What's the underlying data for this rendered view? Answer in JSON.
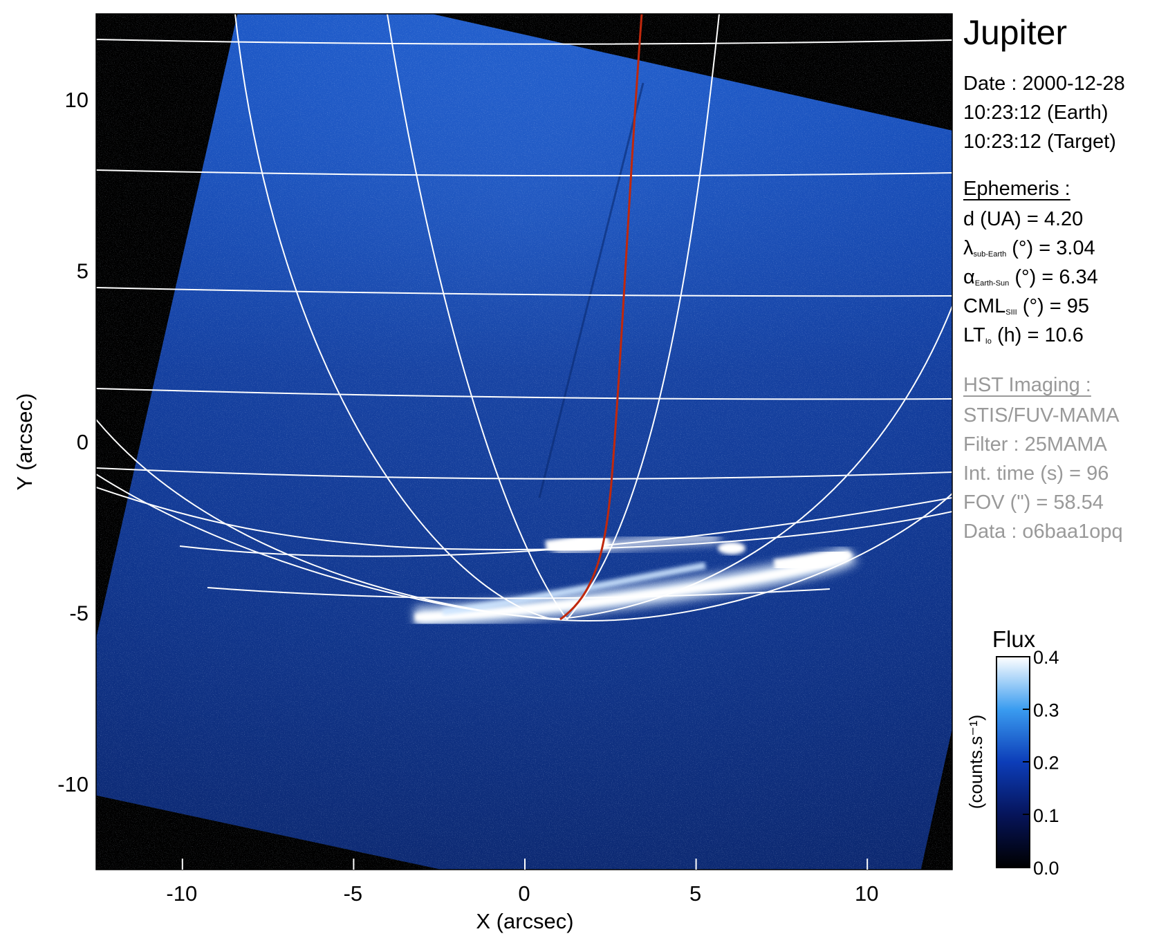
{
  "chart_data": {
    "type": "heatmap",
    "image_description_free": true,
    "xlabel": "X (arcsec)",
    "ylabel": "Y (arcsec)",
    "xlim": [
      -12.5,
      12.5
    ],
    "ylim": [
      -12.5,
      12.5
    ],
    "x_ticks": [
      -10,
      -5,
      0,
      5,
      10
    ],
    "y_ticks": [
      -10,
      -5,
      0,
      5,
      10
    ],
    "x_tick_labels": [
      "-10",
      "-5",
      "0",
      "5",
      "10"
    ],
    "y_tick_labels": [
      "-10",
      "-5",
      "0",
      "5",
      "10"
    ],
    "colorbar": {
      "title": "Flux",
      "label": "(counts.s⁻¹)",
      "range": [
        0.0,
        0.4
      ],
      "ticks": [
        0.0,
        0.1,
        0.2,
        0.3,
        0.4
      ],
      "tick_labels": [
        "0.0",
        "0.1",
        "0.2",
        "0.3",
        "0.4"
      ]
    },
    "colors": {
      "disk": "#1a55c8",
      "background": "#000000",
      "grid": "#ffffff",
      "footprint": "#c0280c"
    }
  },
  "info": {
    "title": "Jupiter",
    "date": "Date : 2000-12-28",
    "earth_time": "10:23:12 (Earth)",
    "target_time": "10:23:12 (Target)",
    "ephemeris_header": "Ephemeris :",
    "d": "d (UA)    = 4.20",
    "lambda_sym": "λ",
    "lambda_sub": "sub-Earth",
    "lambda_rest": " (°) = 3.04",
    "alpha_sym": "α",
    "alpha_sub": "Earth-Sun",
    "alpha_rest": " (°) = 6.34",
    "cml_sym": "CML",
    "cml_sub": "SIII",
    "cml_rest": " (°) = 95",
    "lt_sym": "LT",
    "lt_sub": "Io",
    "lt_rest": " (h) = 10.6",
    "hst_header": "HST Imaging :",
    "instrument": "STIS/FUV-MAMA",
    "filter": "Filter : 25MAMA",
    "int_time": "Int. time (s) = 96",
    "fov": "FOV (\") = 58.54",
    "data_id": "Data : o6baa1opq"
  }
}
